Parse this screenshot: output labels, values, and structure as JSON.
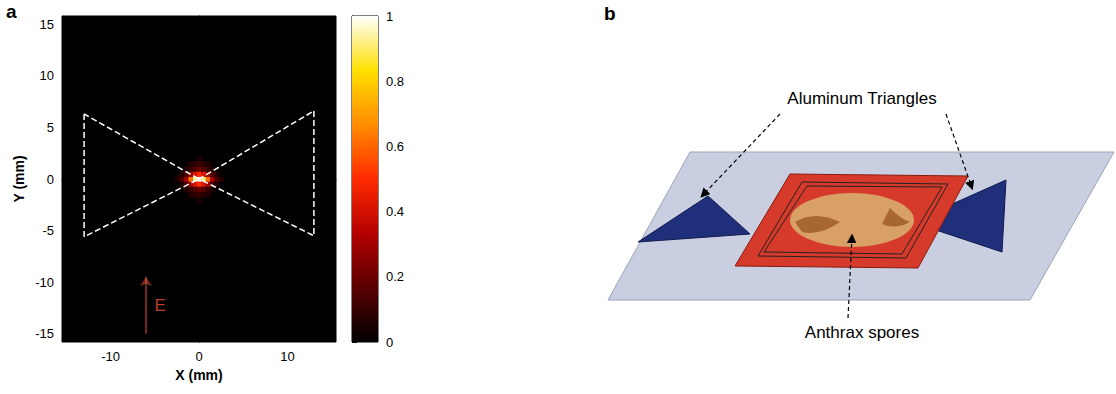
{
  "chart_data": {
    "type": "heatmap",
    "panel": "a",
    "x_label": "X (mm)",
    "y_label": "Y (mm)",
    "xlim": [
      -15.5,
      15.5
    ],
    "xticks": [
      -10,
      0,
      10
    ],
    "ylim": [
      -15.8,
      15.8
    ],
    "yticks": [
      -15,
      -10,
      -5,
      0,
      5,
      10,
      15
    ],
    "cell_size": 0.5,
    "cells": [
      [
        0,
        0,
        1
      ],
      [
        -0.5,
        0,
        0.92
      ],
      [
        0.5,
        0,
        0.92
      ],
      [
        -1,
        0,
        0.62
      ],
      [
        1,
        0,
        0.62
      ],
      [
        -1.5,
        0,
        0.3
      ],
      [
        1.5,
        0,
        0.3
      ],
      [
        -2,
        0,
        0.15
      ],
      [
        2,
        0,
        0.15
      ],
      [
        -2.5,
        0,
        0.06
      ],
      [
        2.5,
        0,
        0.06
      ],
      [
        0,
        0.5,
        0.5
      ],
      [
        0,
        -0.5,
        0.5
      ],
      [
        -0.5,
        0.5,
        0.42
      ],
      [
        0.5,
        0.5,
        0.42
      ],
      [
        -0.5,
        -0.5,
        0.42
      ],
      [
        0.5,
        -0.5,
        0.42
      ],
      [
        -1,
        0.5,
        0.28
      ],
      [
        1,
        0.5,
        0.28
      ],
      [
        -1,
        -0.5,
        0.28
      ],
      [
        1,
        -0.5,
        0.28
      ],
      [
        -1.5,
        0.5,
        0.14
      ],
      [
        1.5,
        0.5,
        0.14
      ],
      [
        -1.5,
        -0.5,
        0.14
      ],
      [
        1.5,
        -0.5,
        0.14
      ],
      [
        -2,
        0.5,
        0.06
      ],
      [
        2,
        0.5,
        0.06
      ],
      [
        -2,
        -0.5,
        0.06
      ],
      [
        2,
        -0.5,
        0.06
      ],
      [
        0,
        1,
        0.2
      ],
      [
        0,
        -1,
        0.2
      ],
      [
        -0.5,
        1,
        0.15
      ],
      [
        0.5,
        1,
        0.15
      ],
      [
        -0.5,
        -1,
        0.15
      ],
      [
        0.5,
        -1,
        0.15
      ],
      [
        -1,
        1,
        0.1
      ],
      [
        1,
        1,
        0.1
      ],
      [
        -1,
        -1,
        0.1
      ],
      [
        1,
        -1,
        0.1
      ],
      [
        -1.5,
        1,
        0.06
      ],
      [
        1.5,
        1,
        0.06
      ],
      [
        -1.5,
        -1,
        0.06
      ],
      [
        1.5,
        -1,
        0.06
      ],
      [
        0,
        1.5,
        0.1
      ],
      [
        0,
        -1.5,
        0.1
      ],
      [
        -0.5,
        1.5,
        0.08
      ],
      [
        0.5,
        1.5,
        0.08
      ],
      [
        -0.5,
        -1.5,
        0.08
      ],
      [
        0.5,
        -1.5,
        0.08
      ],
      [
        -1,
        1.5,
        0.06
      ],
      [
        1,
        1.5,
        0.06
      ],
      [
        -1,
        -1.5,
        0.06
      ],
      [
        1,
        -1.5,
        0.06
      ],
      [
        0,
        2,
        0.06
      ],
      [
        0,
        -2,
        0.06
      ]
    ],
    "colorbar": {
      "range": [
        0,
        1
      ],
      "ticks": [
        0,
        0.2,
        0.4,
        0.6,
        0.8,
        1
      ],
      "colors": [
        "#000000",
        "#5a0000",
        "#b40000",
        "#ff2a00",
        "#ff8c00",
        "#ffe000",
        "#ffffff"
      ]
    },
    "outline": [
      [
        [
          -13,
          6.3
        ],
        [
          -13,
          -5.6
        ],
        [
          0,
          0
        ]
      ],
      [
        [
          13,
          6.6
        ],
        [
          13,
          -5.5
        ],
        [
          0,
          0
        ]
      ]
    ],
    "annotation": {
      "text": "E",
      "arrow": [
        [
          -6,
          -15
        ],
        [
          -6,
          -9.5
        ]
      ],
      "position": [
        -4.4,
        -12.3
      ],
      "color": "#e8523a"
    }
  },
  "diagram": {
    "panel": "b",
    "labels": {
      "triangles": "Aluminum Triangles",
      "spores": "Anthrax spores"
    }
  }
}
